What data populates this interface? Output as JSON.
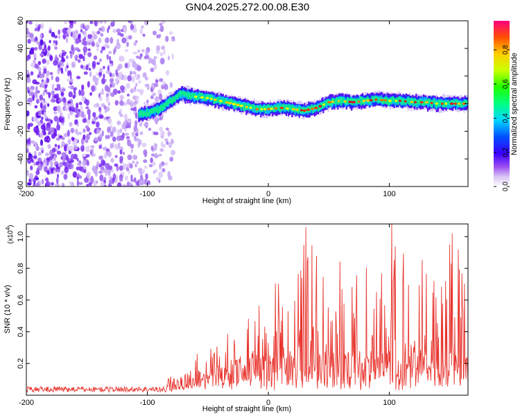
{
  "title": "GN04.2025.272.00.08.E30",
  "chart_data": [
    {
      "type": "heatmap",
      "name": "spectrogram",
      "xlabel": "Height of straight line (km)",
      "ylabel": "Frequency (Hz)",
      "xlim": [
        -200,
        165
      ],
      "ylim": [
        -60,
        60
      ],
      "xticks": [
        -200,
        -100,
        0,
        100
      ],
      "yticks": [
        -60,
        -40,
        -20,
        0,
        20,
        40,
        60
      ],
      "colorbar": {
        "label": "Normalized spectral amplitude",
        "range": [
          0,
          0.97
        ],
        "ticks": [
          "0.0",
          "0.2",
          "0.4",
          "0.6",
          "0.8"
        ],
        "tick_values": [
          0,
          0.2,
          0.4,
          0.6,
          0.8
        ]
      },
      "ridge": {
        "description_points_x": [
          -107,
          -100,
          -90,
          -80,
          -72,
          -60,
          -50,
          -40,
          -30,
          -20,
          -10,
          0,
          10,
          20,
          30,
          40,
          50,
          60,
          70,
          80,
          90,
          100,
          110,
          120,
          130,
          140,
          150,
          165
        ],
        "description_points_y": [
          -8,
          -7,
          -4,
          2,
          7,
          5,
          4,
          2,
          0,
          -2,
          -4,
          -4,
          -3,
          -4,
          -5,
          -3,
          1,
          2,
          1,
          2,
          3,
          2,
          2,
          1,
          1,
          0,
          0,
          0
        ]
      },
      "noise_region_x": [
        -200,
        -83
      ]
    },
    {
      "type": "line",
      "name": "snr",
      "xlabel": "Height of straight line (km)",
      "ylabel": "SNR (10 * v/v)",
      "y_multiplier": "(x10",
      "y_multiplier_exp": "4",
      "y_multiplier_close": ")",
      "xlim": [
        -200,
        165
      ],
      "ylim": [
        0,
        1.08
      ],
      "xticks": [
        -200,
        -100,
        0,
        100
      ],
      "yticks": [
        0.2,
        0.4,
        0.6,
        0.8,
        1.0
      ],
      "ytick_labels": [
        "0.2",
        "0.4",
        "0.6",
        "0.8",
        "1.0"
      ],
      "color": "#e8352e",
      "envelope_x": [
        -200,
        -150,
        -100,
        -90,
        -80,
        -70,
        -60,
        -50,
        -40,
        -30,
        -20,
        -10,
        0,
        10,
        20,
        30,
        40,
        50,
        60,
        70,
        80,
        90,
        100,
        110,
        120,
        130,
        140,
        150,
        160,
        165
      ],
      "envelope_base": [
        0.02,
        0.02,
        0.025,
        0.03,
        0.04,
        0.07,
        0.09,
        0.1,
        0.12,
        0.15,
        0.17,
        0.18,
        0.18,
        0.18,
        0.18,
        0.18,
        0.18,
        0.2,
        0.2,
        0.2,
        0.2,
        0.2,
        0.2,
        0.2,
        0.2,
        0.2,
        0.2,
        0.2,
        0.2,
        0.2
      ],
      "envelope_peak": [
        0.04,
        0.04,
        0.05,
        0.06,
        0.07,
        0.1,
        0.26,
        0.3,
        0.35,
        0.42,
        0.55,
        0.68,
        0.72,
        0.7,
        0.65,
        1.06,
        0.95,
        0.9,
        0.85,
        0.85,
        0.9,
        0.85,
        0.9,
        1.08,
        0.95,
        0.85,
        0.8,
        0.85,
        1.0,
        0.8
      ],
      "peaks": [
        {
          "x": 31,
          "y": 1.06
        },
        {
          "x": 102,
          "y": 1.08
        },
        {
          "x": 150,
          "y": 0.95
        },
        {
          "x": 152,
          "y": 1.02
        },
        {
          "x": -59,
          "y": 0.26
        }
      ]
    }
  ]
}
